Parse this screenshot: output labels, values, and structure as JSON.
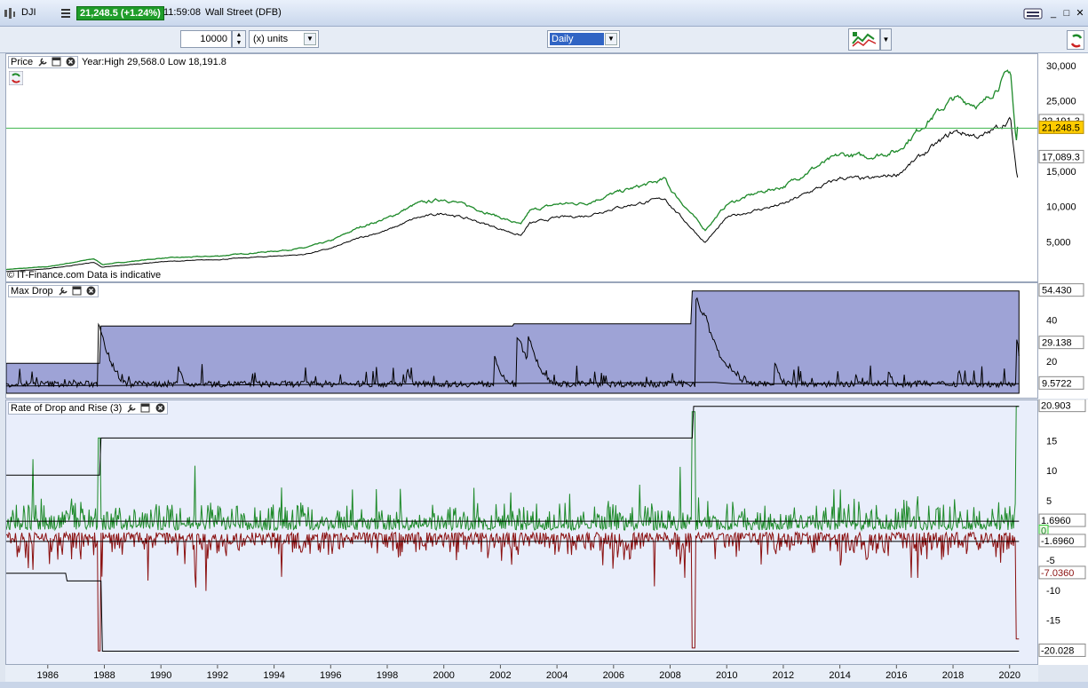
{
  "titlebar": {
    "symbol": "DJI",
    "price_badge": "21,248.5 (+1.24%)",
    "time": "11:59:08",
    "instrument": "Wall Street (DFB)",
    "colors": {
      "badge": "#1f9d2a"
    }
  },
  "toolbar": {
    "quantity": "10000",
    "units": "(x) units",
    "period": "Daily"
  },
  "price_panel": {
    "label": "Price",
    "info": "Year:High 29,568.0 Low 18,191.8",
    "watermark": "© IT-Finance.com  Data is indicative",
    "ticks": [
      "30,000",
      "25,000",
      "22,191.3",
      "21,248.5",
      "17,089.3",
      "15,000",
      "10,000",
      "5,000"
    ]
  },
  "maxdrop_panel": {
    "label": "Max Drop",
    "ticks": [
      "54.430",
      "40",
      "29.138",
      "20",
      "9.5722"
    ]
  },
  "rate_panel": {
    "label": "Rate of Drop and Rise (3)",
    "ticks": [
      "20.903",
      "15",
      "10",
      "5",
      "1.6960",
      "0",
      "-1.6960",
      "-5",
      "-7.0360",
      "-10",
      "-15",
      "-20.028"
    ]
  },
  "x_axis": {
    "labels": [
      "1986",
      "1988",
      "1990",
      "1992",
      "1994",
      "1996",
      "1998",
      "2000",
      "2002",
      "2004",
      "2006",
      "2008",
      "2010",
      "2012",
      "2014",
      "2016",
      "2018",
      "2020"
    ]
  },
  "chart_data": [
    {
      "type": "line",
      "title": "Price",
      "x": [
        1984.5,
        1986,
        1987.6,
        1987.9,
        1990,
        1992,
        1994,
        1995,
        1996,
        1997,
        1998,
        1999,
        2000,
        2001,
        2002.7,
        2003,
        2004,
        2005,
        2006,
        2007.8,
        2008,
        2009.2,
        2010,
        2011,
        2012,
        2013,
        2014,
        2015,
        2016,
        2017,
        2018,
        2019,
        2020.0,
        2020.2,
        2020.25
      ],
      "series": [
        {
          "values": [
            1200,
            1600,
            2700,
            1900,
            2800,
            3100,
            3800,
            4200,
            5300,
            7200,
            8500,
            10500,
            11200,
            10000,
            7500,
            9500,
            10500,
            10600,
            12000,
            14000,
            12500,
            6800,
            10500,
            12000,
            13000,
            15500,
            17500,
            17200,
            18000,
            22000,
            25500,
            24500,
            29500,
            19000,
            21248
          ],
          "color": "#1e8a2a"
        },
        {
          "values": [
            900,
            1300,
            2200,
            1500,
            2300,
            2600,
            3100,
            3300,
            4200,
            5700,
            6800,
            8500,
            9200,
            8200,
            6000,
            7700,
            8600,
            8800,
            9900,
            11300,
            10200,
            5000,
            8600,
            9600,
            10500,
            12400,
            14200,
            14000,
            14700,
            17800,
            20800,
            20000,
            22500,
            15000,
            14300
          ],
          "color": "#000"
        }
      ],
      "ylim": [
        0,
        31000
      ],
      "hline": 21248.5,
      "labelled_values": [
        22191.3,
        21248.5,
        17089.3
      ]
    },
    {
      "type": "area",
      "title": "Max Drop",
      "x": [
        1984.5,
        1987.8,
        1987.85,
        2002.4,
        2002.45,
        2008.7,
        2008.75,
        2020.3
      ],
      "values": [
        19.5,
        19.5,
        37.5,
        37.5,
        38.5,
        38.5,
        54.43,
        54.43
      ],
      "ylim": [
        5,
        56
      ],
      "current": 29.138,
      "average": 9.5722
    },
    {
      "type": "bar",
      "title": "Rate of Drop and Rise (3)",
      "upper_envelope": [
        [
          1984.5,
          9.4
        ],
        [
          1987.8,
          9.4
        ],
        [
          1987.85,
          15.6
        ],
        [
          2008.75,
          15.6
        ],
        [
          2008.8,
          20.903
        ],
        [
          2020.3,
          20.903
        ]
      ],
      "lower_envelope": [
        [
          1984.5,
          -7.0
        ],
        [
          1986.6,
          -7.0
        ],
        [
          1986.65,
          -8.3
        ],
        [
          1987.85,
          -8.3
        ],
        [
          1987.9,
          -20.028
        ],
        [
          2020.3,
          -20.028
        ]
      ],
      "ylim": [
        -21,
        21
      ],
      "upper_avg": 1.696,
      "lower_avg": -1.696,
      "rise_color": "#1e8a2a",
      "drop_color": "#8b1010"
    }
  ]
}
